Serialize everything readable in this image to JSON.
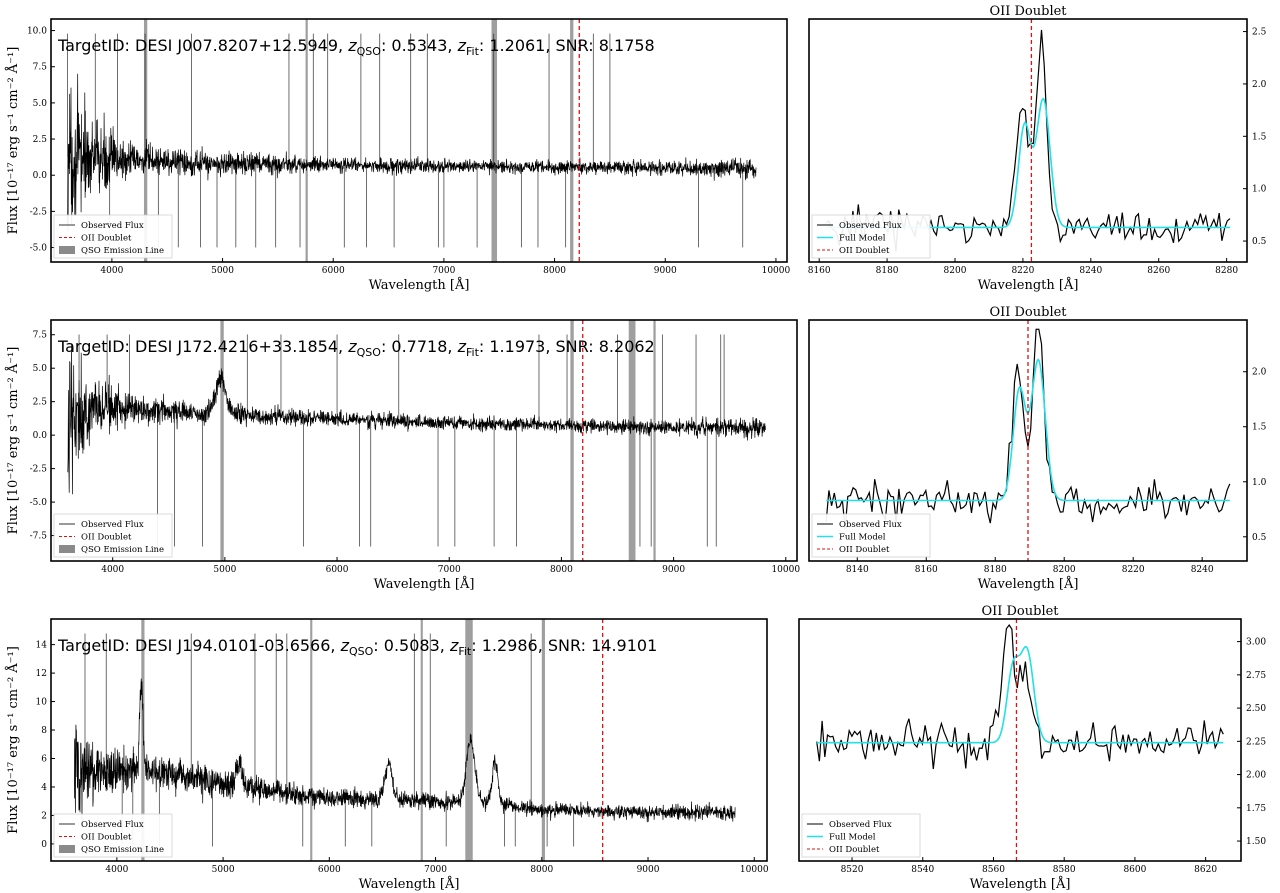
{
  "chart_data": [
    {
      "type": "line",
      "kind": "spectrum",
      "info": {
        "target": "TargetID: DESI J007.8207+12.5949, ",
        "zqso": "0.5343",
        "zfit": "1.2061",
        "snr": "8.1758"
      },
      "xlabel": "Wavelength [Å]",
      "ylabel": "Flux [10⁻¹⁷ erg s⁻¹ cm⁻² Å⁻¹]",
      "xlim": [
        3450,
        10100
      ],
      "ylim": [
        -6.0,
        10.8
      ],
      "xticks": [
        4000,
        5000,
        6000,
        7000,
        8000,
        9000,
        10000
      ],
      "yticks": [
        -5.0,
        -2.5,
        0.0,
        2.5,
        5.0,
        7.5,
        10.0
      ],
      "continuum": [
        [
          3600,
          1.3
        ],
        [
          4000,
          1.1
        ],
        [
          5000,
          0.8
        ],
        [
          6000,
          0.7
        ],
        [
          7000,
          0.6
        ],
        [
          8000,
          0.55
        ],
        [
          9000,
          0.5
        ],
        [
          9820,
          0.5
        ]
      ],
      "noise": [
        [
          3600,
          3.5
        ],
        [
          3800,
          2.0
        ],
        [
          4200,
          0.8
        ],
        [
          6000,
          0.35
        ],
        [
          8000,
          0.3
        ],
        [
          9000,
          0.35
        ],
        [
          9820,
          0.45
        ]
      ],
      "emission_lines": [],
      "spikes": [
        3600,
        3850,
        3980,
        4050,
        4300,
        4420,
        4600,
        4720,
        4800,
        4950,
        5120,
        5300,
        5480,
        5600,
        5700,
        5820,
        5950,
        6100,
        6250,
        6300,
        6420,
        6550,
        6700,
        6850,
        6950,
        7000,
        7300,
        7450,
        7700,
        7850,
        7950,
        8100,
        8350,
        8500,
        9300,
        9700
      ],
      "qso_lines": [
        [
          4290,
          4320
        ],
        [
          5750,
          5770
        ],
        [
          7430,
          7480
        ],
        [
          8140,
          8170
        ]
      ],
      "oii": 8223,
      "legend": [
        "Observed Flux",
        "OII Doublet",
        "QSO Emission Line"
      ]
    },
    {
      "type": "line",
      "kind": "zoom",
      "title": "OII Doublet",
      "xlabel": "Wavelength [Å]",
      "xlim": [
        8157,
        8286
      ],
      "ylim": [
        0.3,
        2.62
      ],
      "xticks": [
        8160,
        8180,
        8200,
        8220,
        8240,
        8260,
        8280
      ],
      "yticks": [
        0.5,
        1.0,
        1.5,
        2.0,
        2.5
      ],
      "baseline": 0.63,
      "model_peaks": [
        [
          8220.5,
          0.97,
          1.8
        ],
        [
          8226.0,
          1.22,
          2.0
        ]
      ],
      "observed_peaks": [
        [
          8220.0,
          1.2,
          1.8
        ],
        [
          8225.5,
          1.85,
          1.5
        ]
      ],
      "oii": 8222.5,
      "legend": [
        "Observed Flux",
        "Full Model",
        "OII Doublet"
      ]
    },
    {
      "type": "line",
      "kind": "spectrum",
      "info": {
        "target": "TargetID: DESI J172.4216+33.1854, ",
        "zqso": "0.7718",
        "zfit": "1.1973",
        "snr": "8.2062"
      },
      "xlabel": "Wavelength [Å]",
      "ylabel": "Flux [10⁻¹⁷ erg s⁻¹ cm⁻² Å⁻¹]",
      "xlim": [
        3450,
        10100
      ],
      "ylim": [
        -9.4,
        8.6
      ],
      "xticks": [
        4000,
        5000,
        6000,
        7000,
        8000,
        9000,
        10000
      ],
      "yticks": [
        -7.5,
        -5.0,
        -2.5,
        0.0,
        2.5,
        5.0,
        7.5
      ],
      "continuum": [
        [
          3600,
          2.0
        ],
        [
          4000,
          2.0
        ],
        [
          4500,
          1.8
        ],
        [
          5000,
          1.5
        ],
        [
          6000,
          1.2
        ],
        [
          7000,
          0.9
        ],
        [
          8000,
          0.7
        ],
        [
          9000,
          0.6
        ],
        [
          9820,
          0.55
        ]
      ],
      "noise": [
        [
          3600,
          4.0
        ],
        [
          3800,
          1.8
        ],
        [
          4200,
          0.7
        ],
        [
          6000,
          0.4
        ],
        [
          8000,
          0.35
        ],
        [
          9000,
          0.4
        ],
        [
          9820,
          0.5
        ]
      ],
      "emission_lines": [
        [
          4960,
          2.6,
          50
        ]
      ],
      "spikes": [
        3700,
        3950,
        4150,
        4400,
        4550,
        4800,
        5200,
        5500,
        5700,
        6000,
        6200,
        6300,
        6550,
        6900,
        7050,
        7400,
        7600,
        7800,
        8050,
        8500,
        8700,
        8800,
        8900,
        9200,
        9300,
        9380,
        9420,
        9450
      ],
      "qso_lines": [
        [
          4960,
          4990
        ],
        [
          8080,
          8110
        ],
        [
          8600,
          8660
        ],
        [
          8820,
          8840
        ]
      ],
      "oii": 8190,
      "legend": [
        "Observed Flux",
        "OII Doublet",
        "QSO Emission Line"
      ]
    },
    {
      "type": "line",
      "kind": "zoom",
      "title": "OII Doublet",
      "xlabel": "Wavelength [Å]",
      "xlim": [
        8126,
        8253
      ],
      "ylim": [
        0.28,
        2.47
      ],
      "xticks": [
        8140,
        8160,
        8180,
        8200,
        8220,
        8240
      ],
      "yticks": [
        0.5,
        1.0,
        1.5,
        2.0
      ],
      "baseline": 0.83,
      "model_peaks": [
        [
          8187.0,
          1.0,
          1.8
        ],
        [
          8192.5,
          1.27,
          2.0
        ]
      ],
      "observed_peaks": [
        [
          8186.5,
          1.2,
          1.6
        ],
        [
          8192.5,
          1.5,
          1.6
        ]
      ],
      "oii": 8189.5,
      "legend": [
        "Observed Flux",
        "Full Model",
        "OII Doublet"
      ]
    },
    {
      "type": "line",
      "kind": "spectrum",
      "info": {
        "target": "TargetID: DESI J194.0101-03.6566, ",
        "zqso": "0.5083",
        "zfit": "1.2986",
        "snr": "14.9101"
      },
      "xlabel": "Wavelength [Å]",
      "ylabel": "Flux [10⁻¹⁷ erg s⁻¹ cm⁻² Å⁻¹]",
      "xlim": [
        3380,
        10120
      ],
      "ylim": [
        -1.2,
        15.8
      ],
      "xticks": [
        4000,
        5000,
        6000,
        7000,
        8000,
        9000,
        10000
      ],
      "yticks": [
        0,
        2,
        4,
        6,
        8,
        10,
        12,
        14
      ],
      "continuum": [
        [
          3600,
          5.0
        ],
        [
          4200,
          5.3
        ],
        [
          4500,
          5.0
        ],
        [
          5000,
          4.2
        ],
        [
          5500,
          3.7
        ],
        [
          6000,
          3.2
        ],
        [
          7000,
          3.0
        ],
        [
          7500,
          2.9
        ],
        [
          8000,
          2.4
        ],
        [
          9000,
          2.2
        ],
        [
          9820,
          2.2
        ]
      ],
      "noise": [
        [
          3600,
          2.5
        ],
        [
          3800,
          1.4
        ],
        [
          4200,
          0.9
        ],
        [
          6000,
          0.45
        ],
        [
          8000,
          0.35
        ],
        [
          9000,
          0.35
        ],
        [
          9820,
          0.45
        ]
      ],
      "emission_lines": [
        [
          4230,
          6.0,
          15
        ],
        [
          5150,
          1.5,
          25
        ],
        [
          6560,
          2.5,
          35
        ],
        [
          7330,
          4.3,
          40
        ],
        [
          7560,
          3.0,
          25
        ]
      ],
      "spikes": [
        3700,
        3900,
        4050,
        4150,
        4400,
        4700,
        4900,
        5300,
        5500,
        5600,
        5750,
        6150,
        6400,
        6800,
        6950,
        7100,
        7650,
        7750,
        7900,
        8050,
        8300
      ],
      "qso_lines": [
        [
          4230,
          4260
        ],
        [
          5820,
          5840
        ],
        [
          6860,
          6880
        ],
        [
          7280,
          7350
        ],
        [
          8000,
          8030
        ]
      ],
      "oii": 8573,
      "legend": [
        "Observed Flux",
        "OII Doublet",
        "QSO Emission Line"
      ]
    },
    {
      "type": "line",
      "kind": "zoom",
      "title": "OII Doublet",
      "xlabel": "Wavelength [Å]",
      "xlim": [
        8505,
        8630
      ],
      "ylim": [
        1.35,
        3.17
      ],
      "xticks": [
        8520,
        8540,
        8560,
        8580,
        8600,
        8620
      ],
      "yticks": [
        1.5,
        1.75,
        2.0,
        2.25,
        2.5,
        2.75,
        3.0
      ],
      "baseline": 2.24,
      "model_peaks": [
        [
          8565.5,
          0.54,
          1.7
        ],
        [
          8569.5,
          0.68,
          1.9
        ]
      ],
      "observed_peaks": [
        [
          8564.0,
          0.85,
          1.5
        ],
        [
          8569.0,
          0.55,
          1.8
        ]
      ],
      "oii": 8566.5,
      "legend": [
        "Observed Flux",
        "Full Model",
        "OII Doublet"
      ]
    }
  ]
}
